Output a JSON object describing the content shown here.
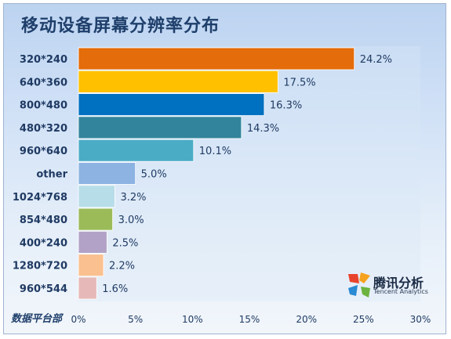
{
  "title": "移动设备屏幕分辨率分布",
  "footer_label": "数据平台部",
  "logo": {
    "name": "腾讯分析",
    "sub": "Tencent Analytics",
    "icon": "tencent-analytics-logo"
  },
  "chart_data": {
    "type": "bar",
    "orientation": "horizontal",
    "title": "移动设备屏幕分辨率分布",
    "categories": [
      "320*240",
      "640*360",
      "800*480",
      "480*320",
      "960*640",
      "other",
      "1024*768",
      "854*480",
      "400*240",
      "1280*720",
      "960*544"
    ],
    "values": [
      24.2,
      17.5,
      16.3,
      14.3,
      10.1,
      5.0,
      3.2,
      3.0,
      2.5,
      2.2,
      1.6
    ],
    "value_labels": [
      "24.2%",
      "17.5%",
      "16.3%",
      "14.3%",
      "10.1%",
      "5.0%",
      "3.2%",
      "3.0%",
      "2.5%",
      "2.2%",
      "1.6%"
    ],
    "colors": [
      "#e46c0a",
      "#ffc000",
      "#0070c0",
      "#31849b",
      "#4bacc6",
      "#8db3e2",
      "#b7dde8",
      "#9bbb59",
      "#b2a2c7",
      "#fac090",
      "#e6b9b8"
    ],
    "x_ticks": [
      "0%",
      "5%",
      "10%",
      "15%",
      "20%",
      "25%",
      "30%"
    ],
    "xlim": [
      0,
      30
    ],
    "xlabel": "",
    "ylabel": "",
    "grid": false,
    "legend": "none"
  }
}
